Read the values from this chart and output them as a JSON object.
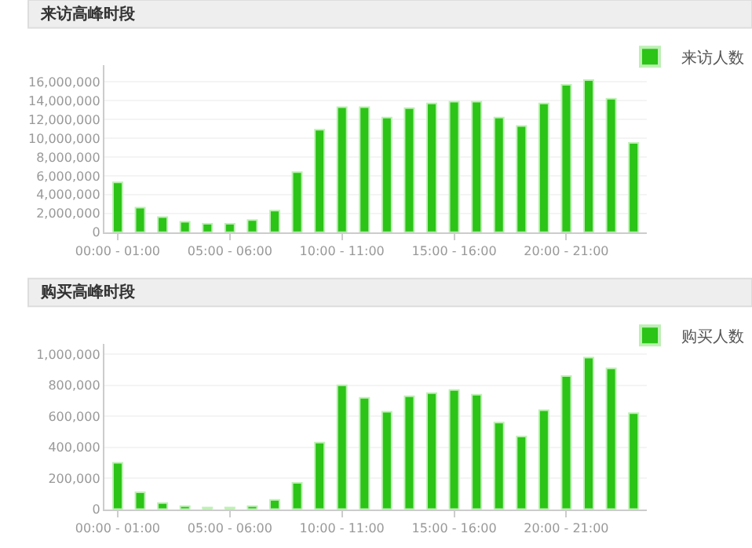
{
  "chart_data": [
    {
      "type": "bar",
      "title": "来访高峰时段",
      "categories": [
        "00:00 - 01:00",
        null,
        null,
        null,
        null,
        "05:00 - 06:00",
        null,
        null,
        null,
        null,
        "10:00 - 11:00",
        null,
        null,
        null,
        null,
        "15:00 - 16:00",
        null,
        null,
        null,
        null,
        "20:00 - 21:00",
        null,
        null,
        null
      ],
      "series": [
        {
          "name": "来访人数",
          "color": "#2bc417",
          "values": [
            5300000,
            2600000,
            1600000,
            1100000,
            900000,
            900000,
            1300000,
            2300000,
            6400000,
            10900000,
            13300000,
            13300000,
            12200000,
            13200000,
            13700000,
            13900000,
            13900000,
            12200000,
            11300000,
            13700000,
            15700000,
            16200000,
            14200000,
            9500000
          ]
        }
      ],
      "ylim": [
        0,
        17800000
      ],
      "yticks": [
        {
          "value": 0,
          "label": "0"
        },
        {
          "value": 2000000,
          "label": "2,000,000"
        },
        {
          "value": 4000000,
          "label": "4,000,000"
        },
        {
          "value": 6000000,
          "label": "6,000,000"
        },
        {
          "value": 8000000,
          "label": "8,000,000"
        },
        {
          "value": 10000000,
          "label": "10,000,000"
        },
        {
          "value": 12000000,
          "label": "12,000,000"
        },
        {
          "value": 14000000,
          "label": "14,000,000"
        },
        {
          "value": 16000000,
          "label": "16,000,000"
        }
      ],
      "grid": "y",
      "legend": "top right"
    },
    {
      "type": "bar",
      "title": "购买高峰时段",
      "categories": [
        "00:00 - 01:00",
        null,
        null,
        null,
        null,
        "05:00 - 06:00",
        null,
        null,
        null,
        null,
        "10:00 - 11:00",
        null,
        null,
        null,
        null,
        "15:00 - 16:00",
        null,
        null,
        null,
        null,
        "20:00 - 21:00",
        null,
        null,
        null
      ],
      "series": [
        {
          "name": "购买人数",
          "color": "#2bc417",
          "values": [
            300000,
            110000,
            40000,
            20000,
            10000,
            10000,
            20000,
            60000,
            170000,
            430000,
            800000,
            720000,
            630000,
            730000,
            750000,
            770000,
            740000,
            560000,
            470000,
            640000,
            860000,
            980000,
            910000,
            620000
          ]
        }
      ],
      "ylim": [
        0,
        1070000
      ],
      "yticks": [
        {
          "value": 0,
          "label": "0"
        },
        {
          "value": 200000,
          "label": "200,000"
        },
        {
          "value": 400000,
          "label": "400,000"
        },
        {
          "value": 600000,
          "label": "600,000"
        },
        {
          "value": 800000,
          "label": "800,000"
        },
        {
          "value": 1000000,
          "label": "1,000,000"
        }
      ],
      "grid": "y",
      "legend": "top right"
    }
  ]
}
